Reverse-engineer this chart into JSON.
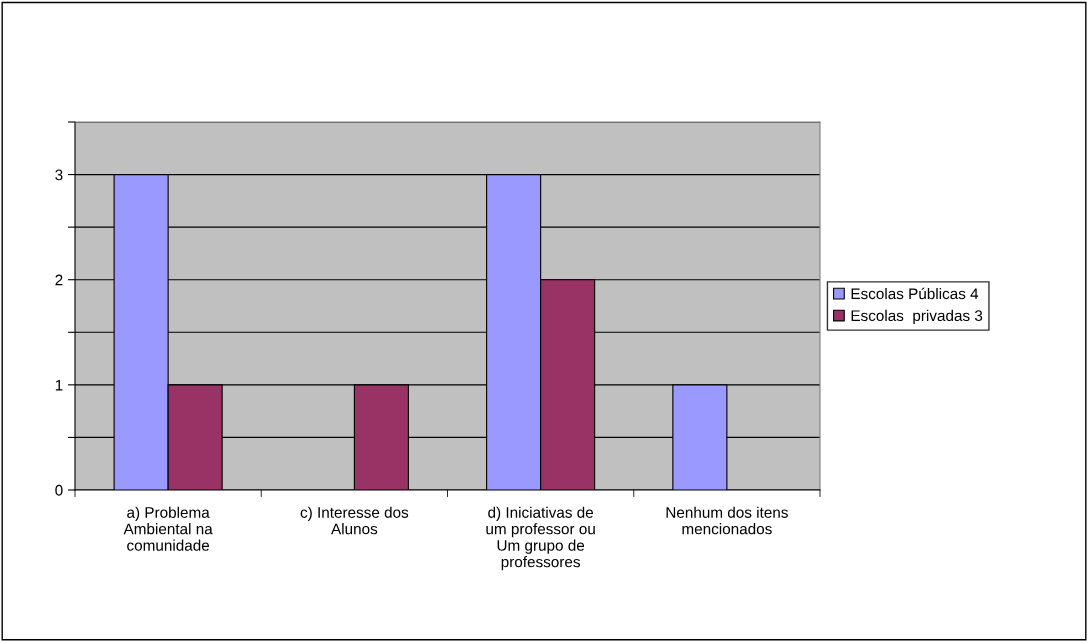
{
  "chart_data": {
    "type": "bar",
    "categories": [
      "a) Problema\nAmbiental na\ncomunidade",
      "c) Interesse dos\nAlunos",
      "d) Iniciativas de\num professor ou\nUm grupo de\nprofessores",
      "Nenhum dos itens\nmencionados"
    ],
    "series": [
      {
        "name": "Escolas Públicas 4",
        "color": "#9999ff",
        "values": [
          3,
          0,
          3,
          1
        ]
      },
      {
        "name": "Escolas  privadas 3",
        "color": "#993366",
        "values": [
          1,
          1,
          2,
          0
        ]
      }
    ],
    "ylim": [
      0,
      3.5
    ],
    "yticks": [
      0,
      {
        "value": 0.5,
        "label": null
      },
      1,
      {
        "value": 1.5,
        "label": null
      },
      2,
      {
        "value": 2.5,
        "label": null
      },
      3,
      {
        "value": 3.5,
        "label": null
      }
    ],
    "grid": "y",
    "legend": "right"
  }
}
